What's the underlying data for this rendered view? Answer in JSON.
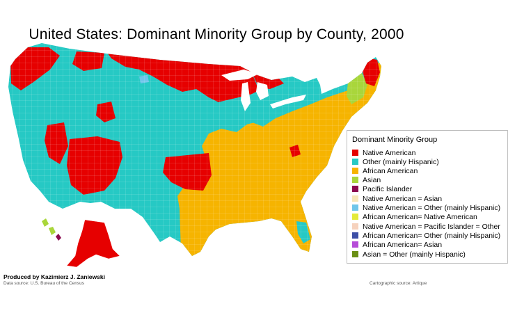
{
  "title": "United States: Dominant Minority Group by County, 2000",
  "colors": {
    "native_american": "#e60000",
    "other_hispanic": "#26c9c4",
    "african_american": "#f6b400",
    "asian": "#a9d63b",
    "pacific_islander": "#8b0a50"
  },
  "legend": {
    "title": "Dominant Minority Group",
    "items": [
      {
        "label": "Native American",
        "color": "#e60000"
      },
      {
        "label": "Other (mainly Hispanic)",
        "color": "#26c9c4"
      },
      {
        "label": "African American",
        "color": "#f6b400"
      },
      {
        "label": "Asian",
        "color": "#a9d63b"
      },
      {
        "label": "Pacific Islander",
        "color": "#8b0a50"
      },
      {
        "label": "Native American = Asian",
        "color": "#f7e6b8"
      },
      {
        "label": "Native American = Other (mainly Hispanic)",
        "color": "#6fc6ea"
      },
      {
        "label": "African American= Native American",
        "color": "#e4ea3a"
      },
      {
        "label": "Native American = Pacific Islander = Other",
        "color": "#f6d2bd"
      },
      {
        "label": "African American= Other (mainly Hispanic)",
        "color": "#3d4fa6"
      },
      {
        "label": "African American= Asian",
        "color": "#b64cd8"
      },
      {
        "label": "Asian = Other (mainly Hispanic)",
        "color": "#6b8f14"
      }
    ]
  },
  "credits": {
    "author": "Produced by Kazimierz J. Zaniewski",
    "data_source": "Data source:  U.S. Bureau of the Census",
    "cartographic_source": "Cartographic source:  Artique"
  }
}
